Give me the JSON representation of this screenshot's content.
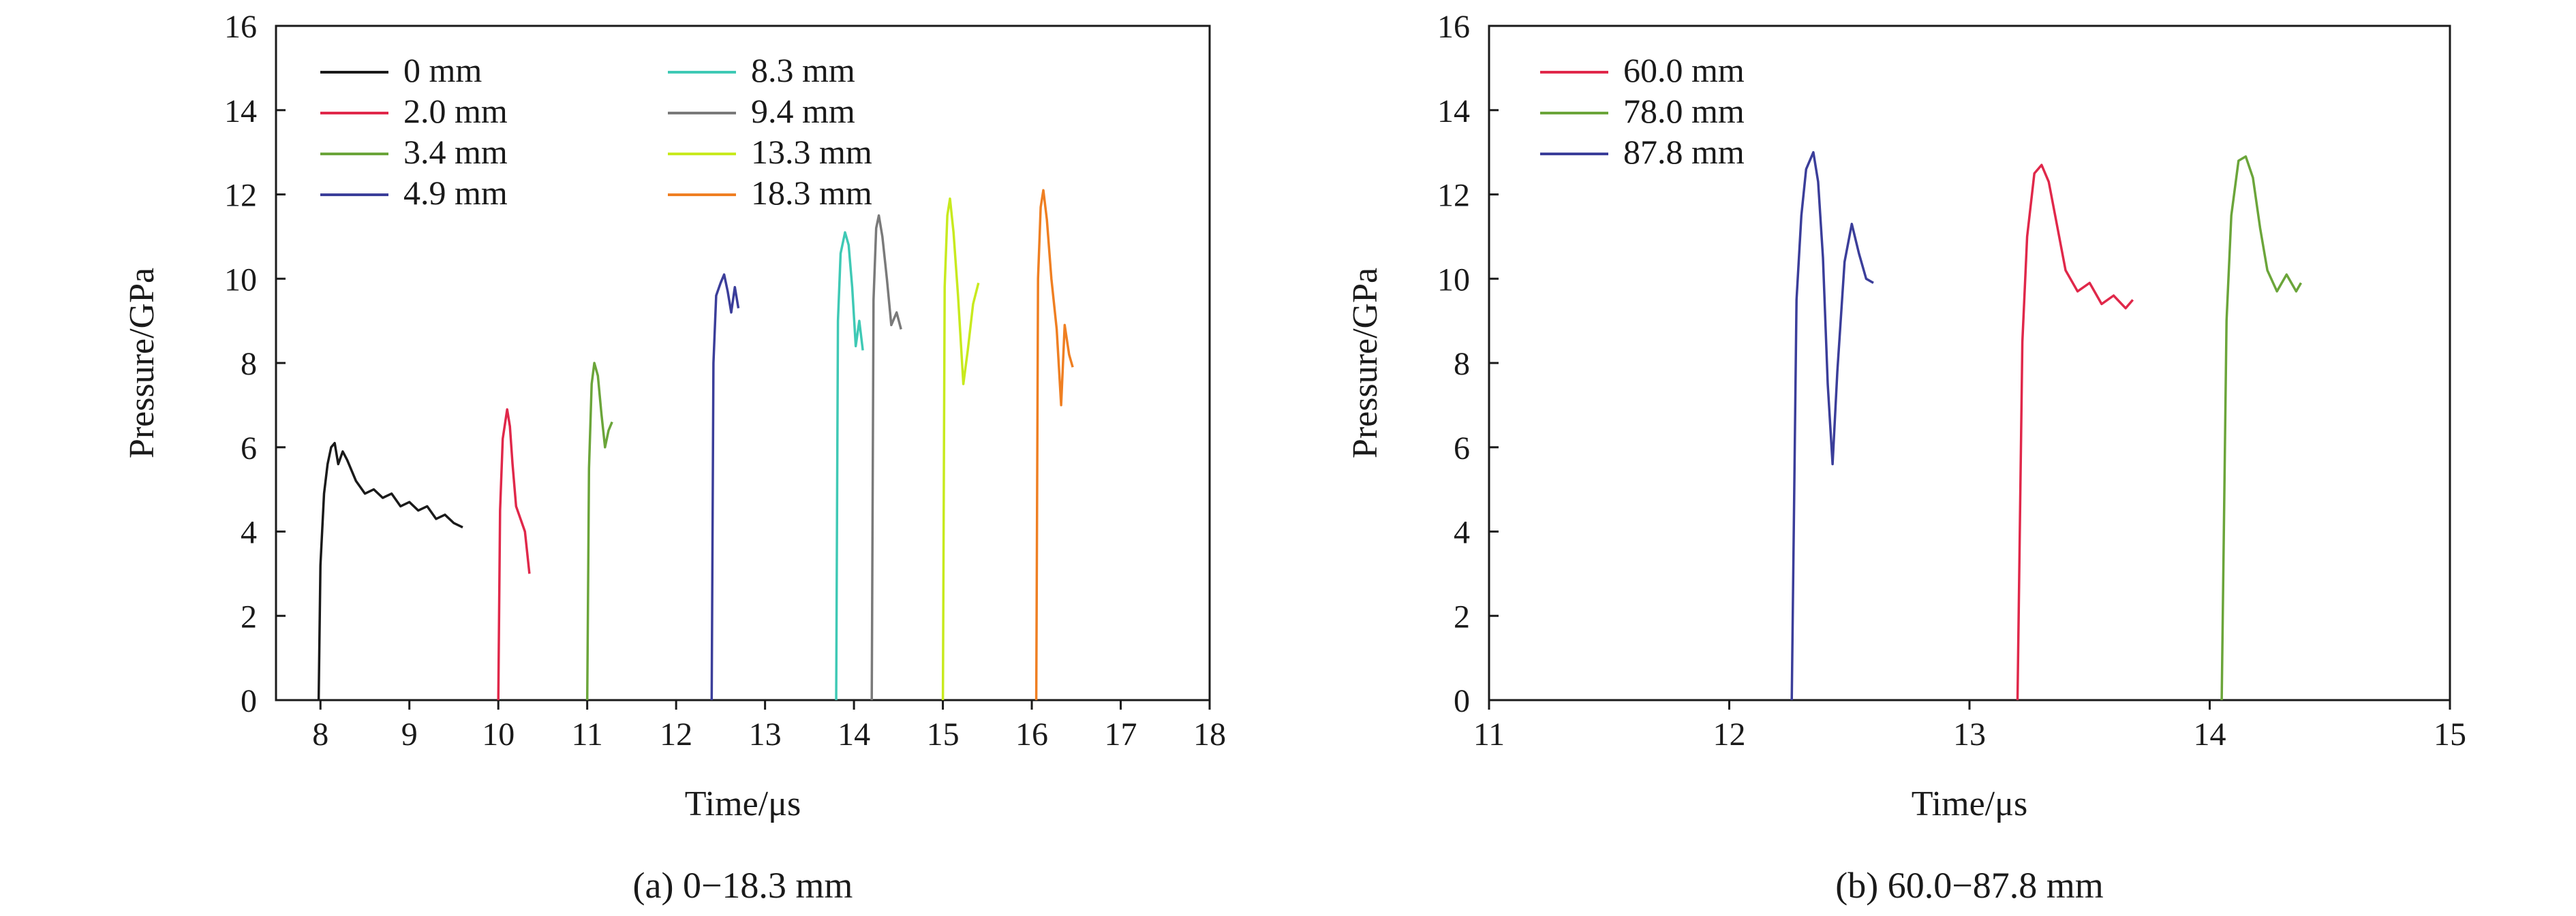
{
  "chart_data": [
    {
      "type": "line",
      "caption": "(a) 0−18.3 mm",
      "xlabel": "Time/μs",
      "ylabel": "Pressure/GPa",
      "xlim": [
        7.5,
        18
      ],
      "ylim": [
        0,
        16
      ],
      "xticks": [
        8,
        9,
        10,
        11,
        12,
        13,
        14,
        15,
        16,
        17,
        18
      ],
      "yticks": [
        0,
        2,
        4,
        6,
        8,
        10,
        12,
        14,
        16
      ],
      "legend_position": "top-left, two columns",
      "series": [
        {
          "name": "0 mm",
          "color": "#1a1a1a",
          "points": [
            [
              7.98,
              0
            ],
            [
              8.0,
              3.2
            ],
            [
              8.04,
              4.9
            ],
            [
              8.08,
              5.6
            ],
            [
              8.12,
              6.0
            ],
            [
              8.16,
              6.1
            ],
            [
              8.2,
              5.6
            ],
            [
              8.25,
              5.9
            ],
            [
              8.3,
              5.7
            ],
            [
              8.4,
              5.2
            ],
            [
              8.5,
              4.9
            ],
            [
              8.6,
              5.0
            ],
            [
              8.7,
              4.8
            ],
            [
              8.8,
              4.9
            ],
            [
              8.9,
              4.6
            ],
            [
              9.0,
              4.7
            ],
            [
              9.1,
              4.5
            ],
            [
              9.2,
              4.6
            ],
            [
              9.3,
              4.3
            ],
            [
              9.4,
              4.4
            ],
            [
              9.5,
              4.2
            ],
            [
              9.6,
              4.1
            ]
          ]
        },
        {
          "name": "2.0 mm",
          "color": "#e0284a",
          "points": [
            [
              10.0,
              0
            ],
            [
              10.02,
              4.5
            ],
            [
              10.05,
              6.2
            ],
            [
              10.1,
              6.9
            ],
            [
              10.13,
              6.5
            ],
            [
              10.16,
              5.6
            ],
            [
              10.2,
              4.6
            ],
            [
              10.25,
              4.3
            ],
            [
              10.3,
              4.0
            ],
            [
              10.35,
              3.0
            ]
          ]
        },
        {
          "name": "3.4 mm",
          "color": "#6ba53a",
          "points": [
            [
              11.0,
              0
            ],
            [
              11.02,
              5.5
            ],
            [
              11.05,
              7.5
            ],
            [
              11.08,
              8.0
            ],
            [
              11.12,
              7.7
            ],
            [
              11.16,
              6.8
            ],
            [
              11.2,
              6.0
            ],
            [
              11.24,
              6.4
            ],
            [
              11.28,
              6.6
            ]
          ]
        },
        {
          "name": "4.9 mm",
          "color": "#3b3e9a",
          "points": [
            [
              12.4,
              0
            ],
            [
              12.42,
              8.0
            ],
            [
              12.45,
              9.6
            ],
            [
              12.5,
              9.9
            ],
            [
              12.54,
              10.1
            ],
            [
              12.58,
              9.7
            ],
            [
              12.62,
              9.2
            ],
            [
              12.66,
              9.8
            ],
            [
              12.7,
              9.3
            ]
          ]
        },
        {
          "name": "8.3 mm",
          "color": "#3fc9b5",
          "points": [
            [
              13.8,
              0
            ],
            [
              13.82,
              9.0
            ],
            [
              13.85,
              10.6
            ],
            [
              13.9,
              11.1
            ],
            [
              13.94,
              10.8
            ],
            [
              13.98,
              9.8
            ],
            [
              14.02,
              8.4
            ],
            [
              14.06,
              9.0
            ],
            [
              14.1,
              8.3
            ]
          ]
        },
        {
          "name": "9.4 mm",
          "color": "#7a7a7a",
          "points": [
            [
              14.2,
              0
            ],
            [
              14.22,
              9.5
            ],
            [
              14.25,
              11.2
            ],
            [
              14.28,
              11.5
            ],
            [
              14.32,
              11.0
            ],
            [
              14.37,
              10.0
            ],
            [
              14.42,
              8.9
            ],
            [
              14.48,
              9.2
            ],
            [
              14.53,
              8.8
            ]
          ]
        },
        {
          "name": "13.3 mm",
          "color": "#c8ea1e",
          "points": [
            [
              15.0,
              0
            ],
            [
              15.02,
              9.8
            ],
            [
              15.05,
              11.5
            ],
            [
              15.08,
              11.9
            ],
            [
              15.12,
              11.1
            ],
            [
              15.17,
              9.6
            ],
            [
              15.23,
              7.5
            ],
            [
              15.28,
              8.3
            ],
            [
              15.34,
              9.4
            ],
            [
              15.4,
              9.9
            ]
          ]
        },
        {
          "name": "18.3 mm",
          "color": "#ef7f22",
          "points": [
            [
              16.05,
              0
            ],
            [
              16.07,
              10.0
            ],
            [
              16.1,
              11.7
            ],
            [
              16.13,
              12.1
            ],
            [
              16.17,
              11.4
            ],
            [
              16.22,
              10.0
            ],
            [
              16.28,
              8.8
            ],
            [
              16.33,
              7.0
            ],
            [
              16.37,
              8.9
            ],
            [
              16.42,
              8.2
            ],
            [
              16.46,
              7.9
            ]
          ]
        }
      ]
    },
    {
      "type": "line",
      "caption": "(b) 60.0−87.8 mm",
      "xlabel": "Time/μs",
      "ylabel": "Pressure/GPa",
      "xlim": [
        11,
        15
      ],
      "ylim": [
        0,
        16
      ],
      "xticks": [
        11,
        12,
        13,
        14,
        15
      ],
      "yticks": [
        0,
        2,
        4,
        6,
        8,
        10,
        12,
        14,
        16
      ],
      "legend_position": "top-left",
      "series": [
        {
          "name": "60.0 mm",
          "color": "#e0284a",
          "points": [
            [
              13.2,
              0
            ],
            [
              13.22,
              8.5
            ],
            [
              13.24,
              11.0
            ],
            [
              13.27,
              12.5
            ],
            [
              13.3,
              12.7
            ],
            [
              13.33,
              12.3
            ],
            [
              13.36,
              11.4
            ],
            [
              13.4,
              10.2
            ],
            [
              13.45,
              9.7
            ],
            [
              13.5,
              9.9
            ],
            [
              13.55,
              9.4
            ],
            [
              13.6,
              9.6
            ],
            [
              13.65,
              9.3
            ],
            [
              13.68,
              9.5
            ]
          ]
        },
        {
          "name": "78.0 mm",
          "color": "#6ba53a",
          "points": [
            [
              14.05,
              0
            ],
            [
              14.07,
              9.0
            ],
            [
              14.09,
              11.5
            ],
            [
              14.12,
              12.8
            ],
            [
              14.15,
              12.9
            ],
            [
              14.18,
              12.4
            ],
            [
              14.21,
              11.2
            ],
            [
              14.24,
              10.2
            ],
            [
              14.28,
              9.7
            ],
            [
              14.32,
              10.1
            ],
            [
              14.36,
              9.7
            ],
            [
              14.38,
              9.9
            ]
          ]
        },
        {
          "name": "87.8 mm",
          "color": "#3b3e9a",
          "points": [
            [
              12.26,
              0
            ],
            [
              12.28,
              9.5
            ],
            [
              12.3,
              11.5
            ],
            [
              12.32,
              12.6
            ],
            [
              12.35,
              13.0
            ],
            [
              12.37,
              12.3
            ],
            [
              12.39,
              10.5
            ],
            [
              12.41,
              7.5
            ],
            [
              12.43,
              5.6
            ],
            [
              12.45,
              7.8
            ],
            [
              12.48,
              10.4
            ],
            [
              12.51,
              11.3
            ],
            [
              12.54,
              10.6
            ],
            [
              12.57,
              10.0
            ],
            [
              12.6,
              9.9
            ]
          ]
        }
      ]
    }
  ]
}
